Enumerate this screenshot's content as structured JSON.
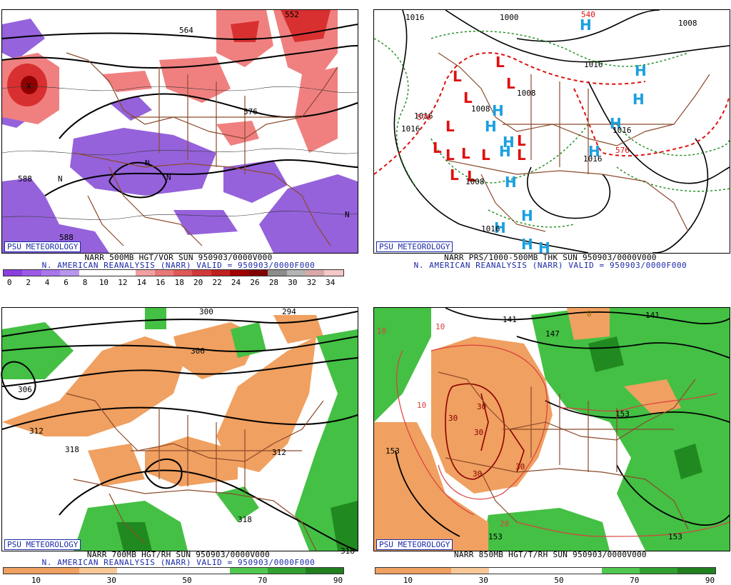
{
  "panels": [
    {
      "id": "vor500",
      "badge": "PSU METEOROLOGY",
      "caption_line1": "NARR 500MB HGT/VOR SUN 950903/0000V000",
      "caption_line2": "N. AMERICAN REANALYSIS (NARR) VALID = 950903/0000F000",
      "scale_ticks": [
        "0",
        "2",
        "4",
        "6",
        "8",
        "10",
        "12",
        "14",
        "16",
        "18",
        "20",
        "22",
        "24",
        "26",
        "28",
        "30",
        "32",
        "34"
      ],
      "scale_colors": [
        "#8a3fe0",
        "#9a5ae6",
        "#a977ea",
        "#b996ee",
        "#ffffff",
        "#ffffff",
        "#ffffff",
        "#f0a0a0",
        "#e87878",
        "#e05858",
        "#d03a3a",
        "#c02020",
        "#a00000",
        "#800000",
        "#8c8c8c",
        "#b4b4b4",
        "#d8a8a8",
        "#f4c8c8"
      ],
      "contour_labels": [
        "564",
        "552",
        "576",
        "588",
        "588",
        "X",
        "N",
        "N",
        "N",
        "N"
      ]
    },
    {
      "id": "prs1000",
      "badge": "PSU METEOROLOGY",
      "caption_line1": "NARR PRS/1000-500MB THK SUN 950903/0000V000",
      "caption_line2": "N. AMERICAN REANALYSIS (NARR) VALID = 950903/0000F000",
      "contour_labels": [
        "1016",
        "1000",
        "540",
        "1008",
        "1016",
        "1016",
        "1008",
        "1016",
        "1016",
        "1008",
        "1016",
        "1016",
        "570",
        "576",
        "1008"
      ]
    },
    {
      "id": "rh700",
      "badge": "PSU METEOROLOGY",
      "caption_line1": "NARR 700MB HGT/RH SUN 950903/0000V000",
      "caption_line2": "N. AMERICAN REANALYSIS (NARR) VALID = 950903/0000F000",
      "scale_ticks": [
        "10",
        "30",
        "50",
        "70",
        "90"
      ],
      "scale_colors": [
        "#f0a060",
        "#f0a060",
        "#f8c898",
        "#ffffff",
        "#ffffff",
        "#ffffff",
        "#50c850",
        "#30a030",
        "#208020"
      ],
      "contour_labels": [
        "300",
        "294",
        "306",
        "306",
        "312",
        "312",
        "318",
        "318",
        "318"
      ]
    },
    {
      "id": "rh850",
      "badge": "PSU METEOROLOGY",
      "caption_line1": "NARR 850MB HGT/T/RH SUN 950903/0000V000",
      "caption_line2": "",
      "scale_ticks": [
        "10",
        "30",
        "50",
        "70",
        "90"
      ],
      "scale_colors": [
        "#f0a060",
        "#f0a060",
        "#f8c898",
        "#ffffff",
        "#ffffff",
        "#ffffff",
        "#50c850",
        "#30a030",
        "#208020"
      ],
      "contour_labels": [
        "141",
        "141",
        "147",
        "153",
        "153",
        "153",
        "153",
        "10",
        "10",
        "10",
        "20",
        "30",
        "30",
        "30",
        "30",
        "30",
        "0"
      ]
    }
  ],
  "colors": {
    "purple": "#8a52d8",
    "pink": "#f08080",
    "red": "#d83030",
    "orange": "#f0a060",
    "green": "#44c044",
    "darkgreen": "#208a20",
    "border": "#8b4a2b",
    "badge": "#1a2aa8",
    "highs": "#1aa0e0",
    "lows": "#e01010"
  }
}
